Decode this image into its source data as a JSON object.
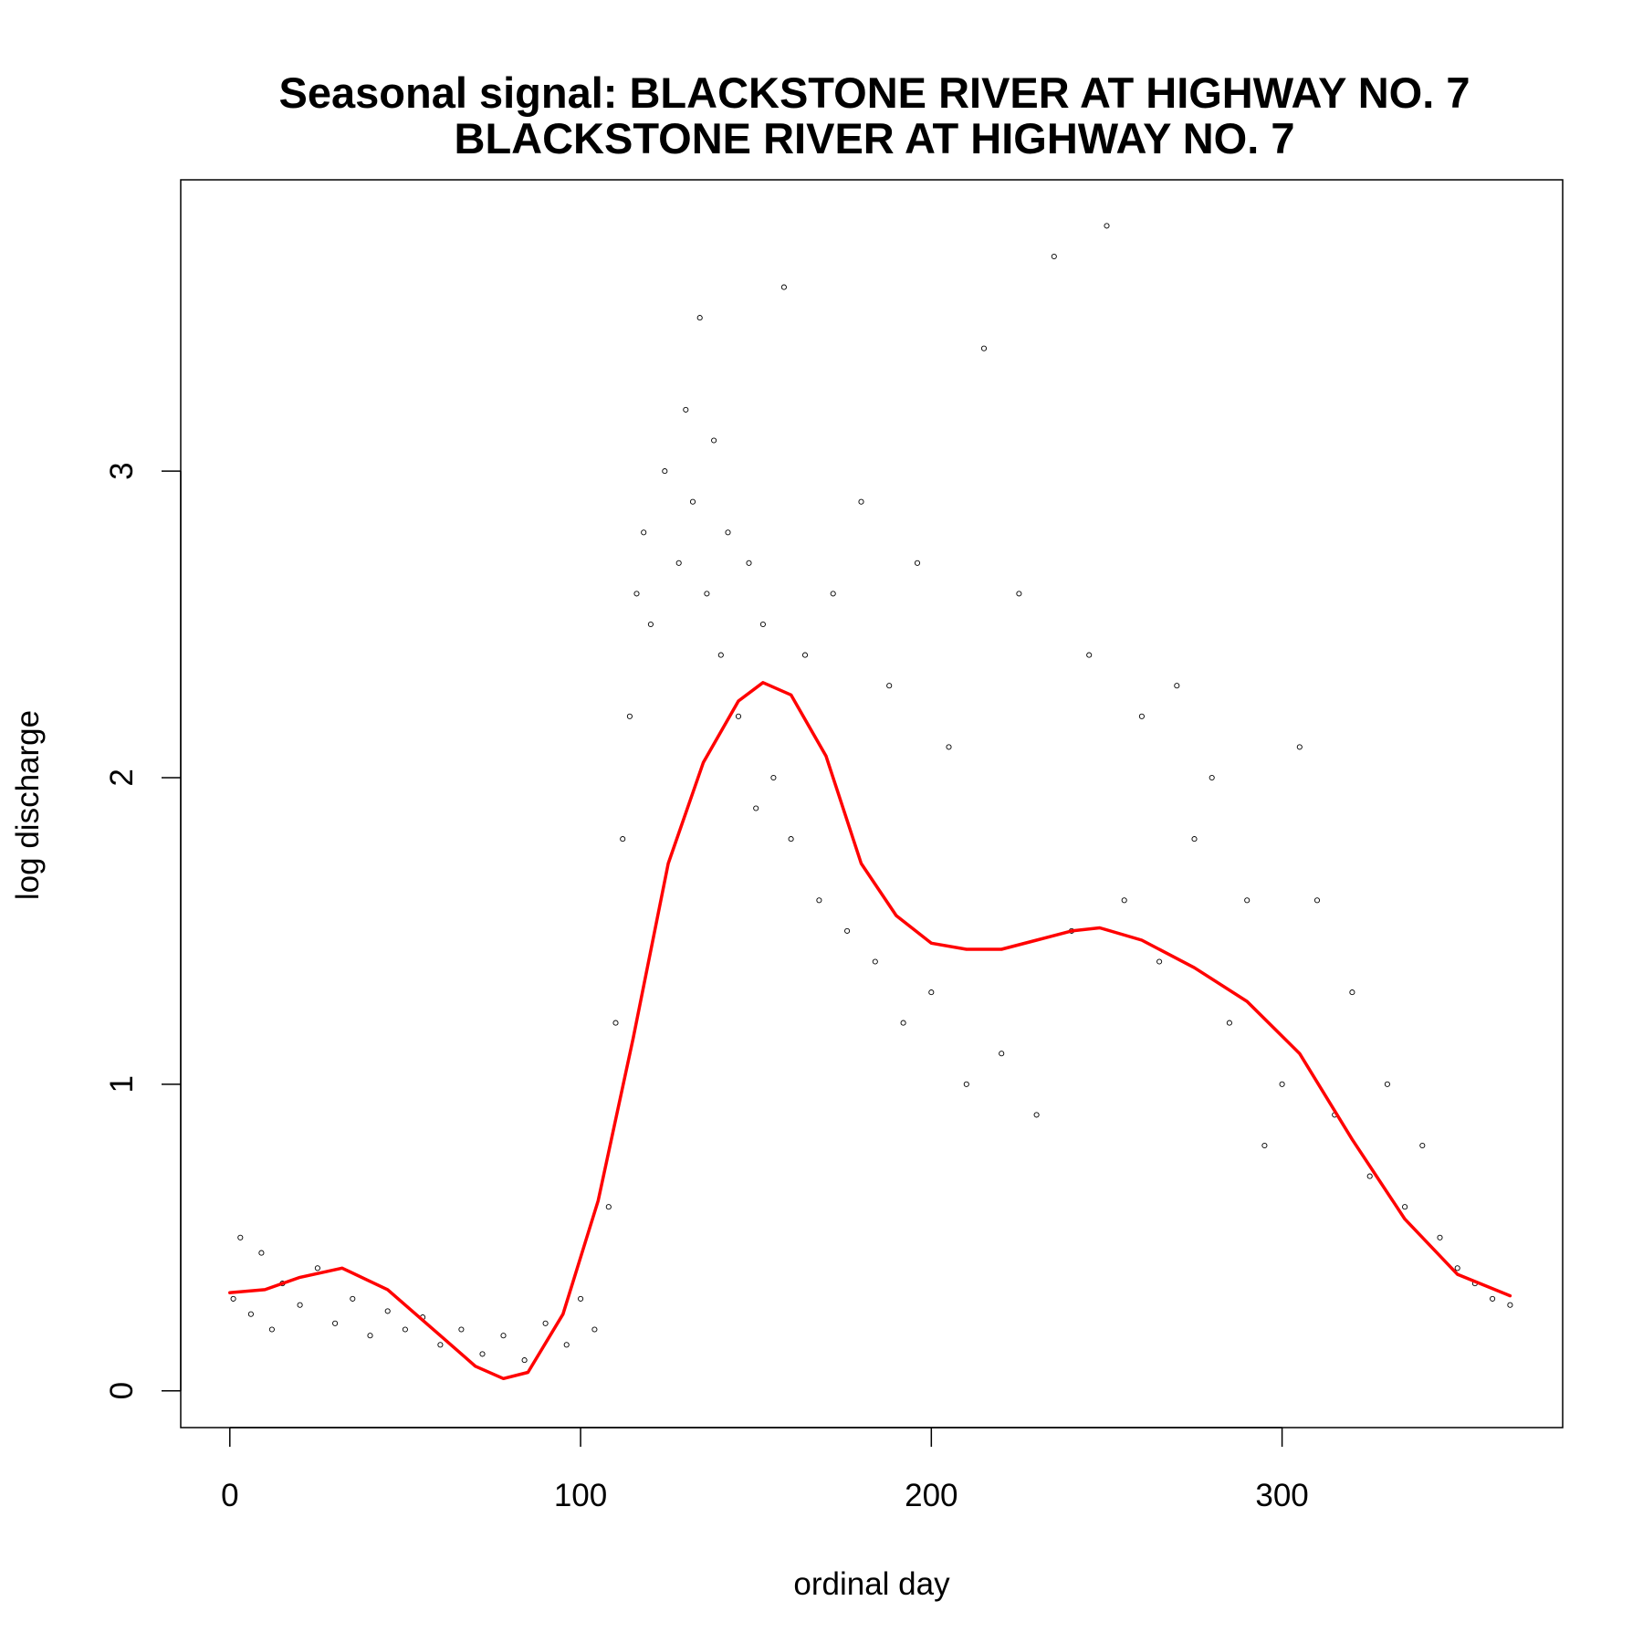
{
  "chart_data": {
    "type": "scatter",
    "title": "Seasonal signal: BLACKSTONE RIVER AT HIGHWAY NO. 7",
    "subtitle": "BLACKSTONE RIVER AT HIGHWAY NO. 7",
    "xlabel": "ordinal day",
    "ylabel": "log discharge",
    "xlim": [
      -14,
      380
    ],
    "ylim": [
      -0.12,
      3.95
    ],
    "xticks": [
      0,
      100,
      200,
      300
    ],
    "yticks": [
      0,
      1,
      2,
      3
    ],
    "grid": false,
    "legend": "none",
    "colors": {
      "points": "#000000",
      "smooth": "#ff0000"
    },
    "series": [
      {
        "kind": "points",
        "x": [
          1,
          3,
          6,
          9,
          12,
          15,
          20,
          25,
          30,
          35,
          40,
          45,
          50,
          55,
          60,
          66,
          72,
          78,
          84,
          90,
          96,
          100,
          104,
          108,
          110,
          112,
          114,
          116,
          118,
          120,
          124,
          128,
          130,
          132,
          134,
          136,
          138,
          140,
          142,
          145,
          148,
          150,
          152,
          155,
          158,
          160,
          164,
          168,
          172,
          176,
          180,
          184,
          188,
          192,
          196,
          200,
          205,
          210,
          215,
          220,
          225,
          230,
          235,
          240,
          245,
          250,
          255,
          260,
          265,
          270,
          275,
          280,
          285,
          290,
          295,
          300,
          305,
          310,
          315,
          320,
          325,
          330,
          335,
          340,
          345,
          350,
          355,
          360,
          365
        ],
        "y": [
          0.3,
          0.5,
          0.25,
          0.45,
          0.2,
          0.35,
          0.28,
          0.4,
          0.22,
          0.3,
          0.18,
          0.26,
          0.2,
          0.24,
          0.15,
          0.2,
          0.12,
          0.18,
          0.1,
          0.22,
          0.15,
          0.3,
          0.2,
          0.6,
          1.2,
          1.8,
          2.2,
          2.6,
          2.8,
          2.5,
          3.0,
          2.7,
          3.2,
          2.9,
          3.5,
          2.6,
          3.1,
          2.4,
          2.8,
          2.2,
          2.7,
          1.9,
          2.5,
          2.0,
          3.6,
          1.8,
          2.4,
          1.6,
          2.6,
          1.5,
          2.9,
          1.4,
          2.3,
          1.2,
          2.7,
          1.3,
          2.1,
          1.0,
          3.4,
          1.1,
          2.6,
          0.9,
          3.7,
          1.5,
          2.4,
          3.8,
          1.6,
          2.2,
          1.4,
          2.3,
          1.8,
          2.0,
          1.2,
          1.6,
          0.8,
          1.0,
          2.1,
          1.6,
          0.9,
          1.3,
          0.7,
          1.0,
          0.6,
          0.8,
          0.5,
          0.4,
          0.35,
          0.3,
          0.28
        ]
      },
      {
        "kind": "smooth",
        "x": [
          0,
          10,
          20,
          32,
          45,
          60,
          70,
          78,
          85,
          95,
          105,
          115,
          125,
          135,
          145,
          152,
          160,
          170,
          180,
          190,
          200,
          210,
          220,
          230,
          240,
          248,
          260,
          275,
          290,
          305,
          320,
          335,
          350,
          365
        ],
        "y": [
          0.32,
          0.33,
          0.37,
          0.4,
          0.33,
          0.18,
          0.08,
          0.04,
          0.06,
          0.25,
          0.62,
          1.15,
          1.72,
          2.05,
          2.25,
          2.31,
          2.27,
          2.07,
          1.72,
          1.55,
          1.46,
          1.44,
          1.44,
          1.47,
          1.5,
          1.51,
          1.47,
          1.38,
          1.27,
          1.1,
          0.82,
          0.56,
          0.38,
          0.31
        ]
      }
    ]
  }
}
